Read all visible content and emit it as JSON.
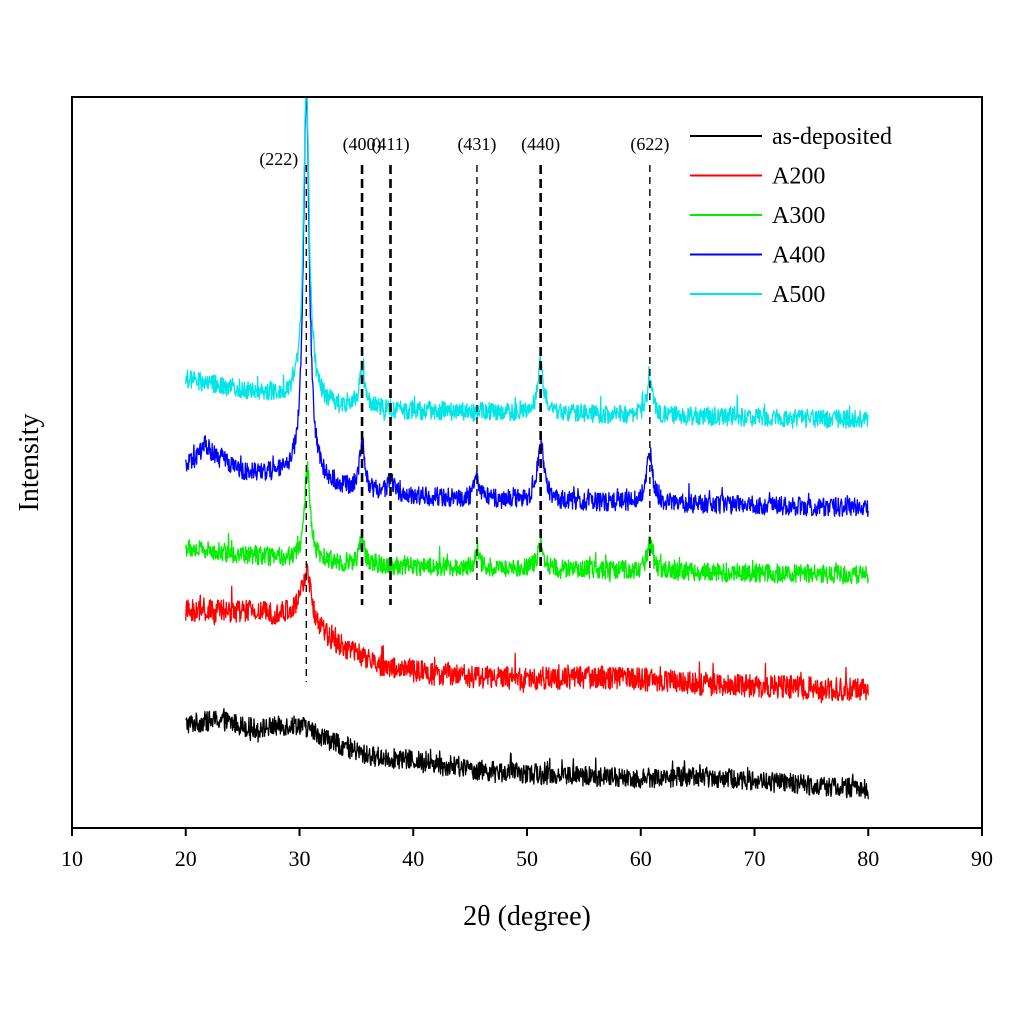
{
  "chart_data": {
    "type": "line",
    "title": "",
    "xlabel": "2θ (degree)",
    "ylabel": "Intensity",
    "xlim": [
      10,
      90
    ],
    "x_ticks": [
      10,
      20,
      30,
      40,
      50,
      60,
      70,
      80,
      90
    ],
    "x_tick_labels": [
      "10",
      "20",
      "30",
      "40",
      "50",
      "60",
      "70",
      "80",
      "90"
    ],
    "y_ticks_shown": false,
    "grid": false,
    "legend_position": "top-right",
    "x_range": [
      20,
      80
    ],
    "peak_markers": [
      {
        "label": "(222)",
        "x": 30.6
      },
      {
        "label": "(400)",
        "x": 35.5
      },
      {
        "label": "(411)",
        "x": 38.0
      },
      {
        "label": "(431)",
        "x": 45.6
      },
      {
        "label": "(440)",
        "x": 51.2
      },
      {
        "label": "(622)",
        "x": 60.8
      }
    ],
    "series": [
      {
        "name": "as-deposited",
        "color": "#000000",
        "background": [
          [
            20,
            2.3
          ],
          [
            23,
            2.4
          ],
          [
            26,
            2.2
          ],
          [
            30,
            2.3
          ],
          [
            33,
            1.9
          ],
          [
            36,
            1.6
          ],
          [
            40,
            1.5
          ],
          [
            45,
            1.3
          ],
          [
            50,
            1.2
          ],
          [
            55,
            1.15
          ],
          [
            60,
            1.1
          ],
          [
            65,
            1.15
          ],
          [
            70,
            1.05
          ],
          [
            75,
            0.95
          ],
          [
            80,
            0.85
          ]
        ],
        "peaks": [],
        "noise": 0.28
      },
      {
        "name": "A200",
        "color": "#ff0000",
        "background": [
          [
            20,
            4.8
          ],
          [
            25,
            4.8
          ],
          [
            29,
            4.7
          ],
          [
            33,
            4.1
          ],
          [
            37,
            3.6
          ],
          [
            42,
            3.4
          ],
          [
            50,
            3.3
          ],
          [
            55,
            3.35
          ],
          [
            60,
            3.3
          ],
          [
            65,
            3.2
          ],
          [
            70,
            3.15
          ],
          [
            75,
            3.1
          ],
          [
            80,
            3.05
          ]
        ],
        "peaks": [
          {
            "x": 30.6,
            "h": 1.2,
            "w": 0.55
          }
        ],
        "noise": 0.32
      },
      {
        "name": "A300",
        "color": "#00ee00",
        "background": [
          [
            20,
            6.2
          ],
          [
            25,
            6.05
          ],
          [
            30,
            5.95
          ],
          [
            35,
            5.85
          ],
          [
            40,
            5.8
          ],
          [
            50,
            5.75
          ],
          [
            60,
            5.7
          ],
          [
            70,
            5.65
          ],
          [
            80,
            5.6
          ]
        ],
        "peaks": [
          {
            "x": 30.7,
            "h": 2.0,
            "w": 0.3
          },
          {
            "x": 35.5,
            "h": 0.6,
            "w": 0.25
          },
          {
            "x": 45.6,
            "h": 0.3,
            "w": 0.25
          },
          {
            "x": 51.2,
            "h": 0.6,
            "w": 0.3
          },
          {
            "x": 60.8,
            "h": 0.6,
            "w": 0.3
          }
        ],
        "noise": 0.26
      },
      {
        "name": "A400",
        "color": "#0000ff",
        "background": [
          [
            20,
            8.0
          ],
          [
            22,
            8.3
          ],
          [
            25,
            7.9
          ],
          [
            30,
            7.75
          ],
          [
            35,
            7.45
          ],
          [
            40,
            7.35
          ],
          [
            50,
            7.25
          ],
          [
            60,
            7.2
          ],
          [
            70,
            7.15
          ],
          [
            80,
            7.1
          ]
        ],
        "peaks": [
          {
            "x": 21.6,
            "h": 0.3,
            "w": 0.3
          },
          {
            "x": 30.6,
            "h": 8.5,
            "w": 0.32
          },
          {
            "x": 35.5,
            "h": 1.1,
            "w": 0.28
          },
          {
            "x": 38.0,
            "h": 0.35,
            "w": 0.28
          },
          {
            "x": 45.6,
            "h": 0.45,
            "w": 0.28
          },
          {
            "x": 51.2,
            "h": 1.3,
            "w": 0.35
          },
          {
            "x": 60.8,
            "h": 1.1,
            "w": 0.32
          }
        ],
        "noise": 0.26
      },
      {
        "name": "A500",
        "color": "#00e5e5",
        "background": [
          [
            20,
            9.95
          ],
          [
            25,
            9.7
          ],
          [
            28,
            9.6
          ],
          [
            32,
            9.4
          ],
          [
            36,
            9.3
          ],
          [
            40,
            9.25
          ],
          [
            50,
            9.2
          ],
          [
            60,
            9.15
          ],
          [
            70,
            9.1
          ],
          [
            80,
            9.05
          ]
        ],
        "peaks": [
          {
            "x": 30.6,
            "h": 7.0,
            "w": 0.3
          },
          {
            "x": 35.5,
            "h": 0.9,
            "w": 0.25
          },
          {
            "x": 51.2,
            "h": 1.1,
            "w": 0.3
          },
          {
            "x": 60.8,
            "h": 0.8,
            "w": 0.28
          }
        ],
        "noise": 0.26
      }
    ]
  }
}
